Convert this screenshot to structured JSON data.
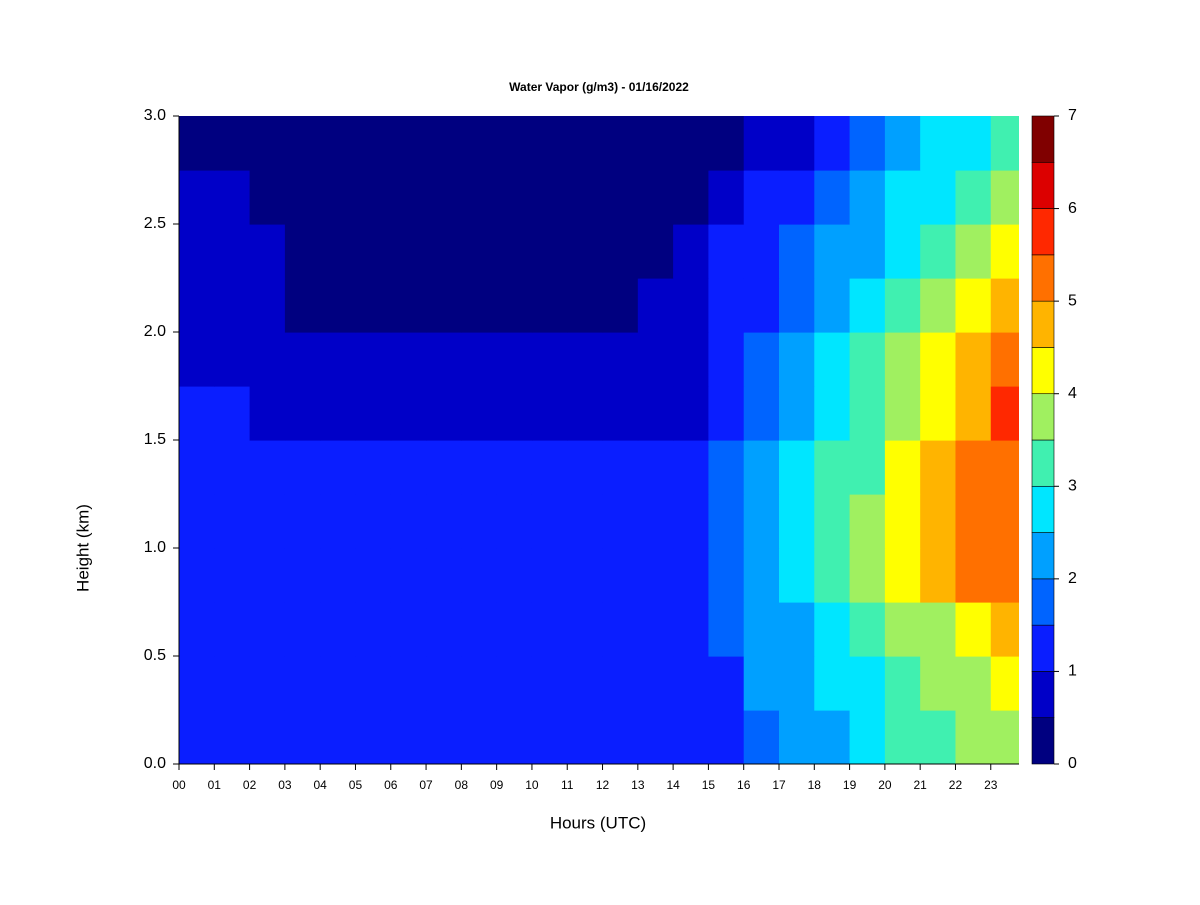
{
  "chart_data": {
    "type": "heatmap",
    "title": "Water Vapor (g/m3) - 01/16/2022",
    "xlabel": "Hours (UTC)",
    "ylabel": "Height (km)",
    "xlim": [
      0,
      23.8
    ],
    "ylim": [
      0,
      3
    ],
    "xticks": [
      {
        "value": 0,
        "label": "00"
      },
      {
        "value": 1,
        "label": "01"
      },
      {
        "value": 2,
        "label": "02"
      },
      {
        "value": 3,
        "label": "03"
      },
      {
        "value": 4,
        "label": "04"
      },
      {
        "value": 5,
        "label": "05"
      },
      {
        "value": 6,
        "label": "06"
      },
      {
        "value": 7,
        "label": "07"
      },
      {
        "value": 8,
        "label": "08"
      },
      {
        "value": 9,
        "label": "09"
      },
      10,
      11,
      12,
      13,
      14,
      15,
      16,
      17,
      18,
      19,
      20,
      21,
      22,
      23
    ],
    "yticks": [
      {
        "value": 0,
        "label": "0.0"
      },
      0.5,
      {
        "value": 1,
        "label": "1.0"
      },
      1.5,
      {
        "value": 2,
        "label": "2.0"
      },
      2.5,
      {
        "value": 3,
        "label": "3.0"
      }
    ],
    "x": [
      0.5,
      1.5,
      2.5,
      3.5,
      4.5,
      5.5,
      6.5,
      7.5,
      8.5,
      9.5,
      10.5,
      11.5,
      12.5,
      13.5,
      14.5,
      15.5,
      16.5,
      17.5,
      18.5,
      19.5,
      20.5,
      21.5,
      22.5,
      23.5
    ],
    "y": [
      0.125,
      0.375,
      0.625,
      0.875,
      1.125,
      1.375,
      1.625,
      1.875,
      2.125,
      2.375,
      2.625,
      2.875
    ],
    "z": [
      [
        1.2,
        1.2,
        1.2,
        1.2,
        1.2,
        1.2,
        1.2,
        1.2,
        1.2,
        1.2,
        1.2,
        1.2,
        1.2,
        1.2,
        1.2,
        1.3,
        1.8,
        2.2,
        2.4,
        2.8,
        3.1,
        3.3,
        3.5,
        3.6
      ],
      [
        1.2,
        1.2,
        1.2,
        1.2,
        1.2,
        1.2,
        1.2,
        1.2,
        1.2,
        1.2,
        1.2,
        1.2,
        1.2,
        1.2,
        1.2,
        1.4,
        2.1,
        2.3,
        2.6,
        2.9,
        3.2,
        3.5,
        3.9,
        4.2
      ],
      [
        1.2,
        1.2,
        1.2,
        1.2,
        1.2,
        1.2,
        1.2,
        1.2,
        1.2,
        1.2,
        1.2,
        1.2,
        1.2,
        1.2,
        1.2,
        1.6,
        2.2,
        2.4,
        2.7,
        3.1,
        3.5,
        3.9,
        4.4,
        4.7
      ],
      [
        1.2,
        1.2,
        1.2,
        1.2,
        1.2,
        1.2,
        1.2,
        1.2,
        1.2,
        1.2,
        1.2,
        1.2,
        1.2,
        1.2,
        1.2,
        1.7,
        2.3,
        2.6,
        3.0,
        3.5,
        4.0,
        4.5,
        5.1,
        5.4
      ],
      [
        1.2,
        1.2,
        1.2,
        1.2,
        1.2,
        1.2,
        1.2,
        1.2,
        1.2,
        1.2,
        1.2,
        1.2,
        1.2,
        1.2,
        1.2,
        1.6,
        2.2,
        2.6,
        3.1,
        3.6,
        4.1,
        4.6,
        5.1,
        5.4
      ],
      [
        1.2,
        1.2,
        1.2,
        1.2,
        1.2,
        1.2,
        1.2,
        1.2,
        1.2,
        1.2,
        1.2,
        1.2,
        1.2,
        1.2,
        1.3,
        1.5,
        2.0,
        2.5,
        3.0,
        3.4,
        4.0,
        4.5,
        5.0,
        5.4
      ],
      [
        1.1,
        1.1,
        0.8,
        0.8,
        0.8,
        0.8,
        0.8,
        0.8,
        0.8,
        0.8,
        0.8,
        0.8,
        0.8,
        0.8,
        0.9,
        1.3,
        1.7,
        2.2,
        2.7,
        3.2,
        3.8,
        4.3,
        4.9,
        5.5
      ],
      [
        0.8,
        0.8,
        0.8,
        0.8,
        0.8,
        0.8,
        0.8,
        0.8,
        0.8,
        0.8,
        0.8,
        0.8,
        0.8,
        0.8,
        0.9,
        1.2,
        1.5,
        2.0,
        2.5,
        3.0,
        3.5,
        4.0,
        4.5,
        5.0
      ],
      [
        0.8,
        0.8,
        0.8,
        0.3,
        0.3,
        0.3,
        0.3,
        0.3,
        0.3,
        0.3,
        0.3,
        0.3,
        0.3,
        0.5,
        0.8,
        1.1,
        1.4,
        1.8,
        2.2,
        2.7,
        3.2,
        3.6,
        4.2,
        4.6
      ],
      [
        0.8,
        0.8,
        0.6,
        0.3,
        0.3,
        0.3,
        0.3,
        0.3,
        0.3,
        0.3,
        0.3,
        0.3,
        0.3,
        0.3,
        0.7,
        1.0,
        1.2,
        1.5,
        2.0,
        2.4,
        2.9,
        3.3,
        3.9,
        4.3
      ],
      [
        0.8,
        0.8,
        0.4,
        0.3,
        0.3,
        0.3,
        0.3,
        0.3,
        0.3,
        0.3,
        0.3,
        0.3,
        0.3,
        0.3,
        0.4,
        0.7,
        1.0,
        1.3,
        1.7,
        2.1,
        2.6,
        2.9,
        3.4,
        3.9
      ],
      [
        0.3,
        0.3,
        0.3,
        0.3,
        0.3,
        0.3,
        0.3,
        0.3,
        0.3,
        0.3,
        0.3,
        0.3,
        0.3,
        0.3,
        0.3,
        0.4,
        0.6,
        0.9,
        1.3,
        1.7,
        2.2,
        2.6,
        2.9,
        3.3
      ]
    ],
    "levels": [
      0,
      0.5,
      1,
      1.5,
      2,
      2.5,
      3,
      3.5,
      4,
      4.5,
      5,
      5.5,
      6,
      6.5,
      7
    ],
    "colors": [
      "#000080",
      "#0000c8",
      "#0a1eff",
      "#0064ff",
      "#00a0ff",
      "#00e6ff",
      "#40f0b0",
      "#a0f060",
      "#ffff00",
      "#ffb400",
      "#ff7000",
      "#ff2800",
      "#dc0000",
      "#800000"
    ],
    "colorbar_ticks": [
      0,
      1,
      2,
      3,
      4,
      5,
      6,
      7
    ]
  }
}
